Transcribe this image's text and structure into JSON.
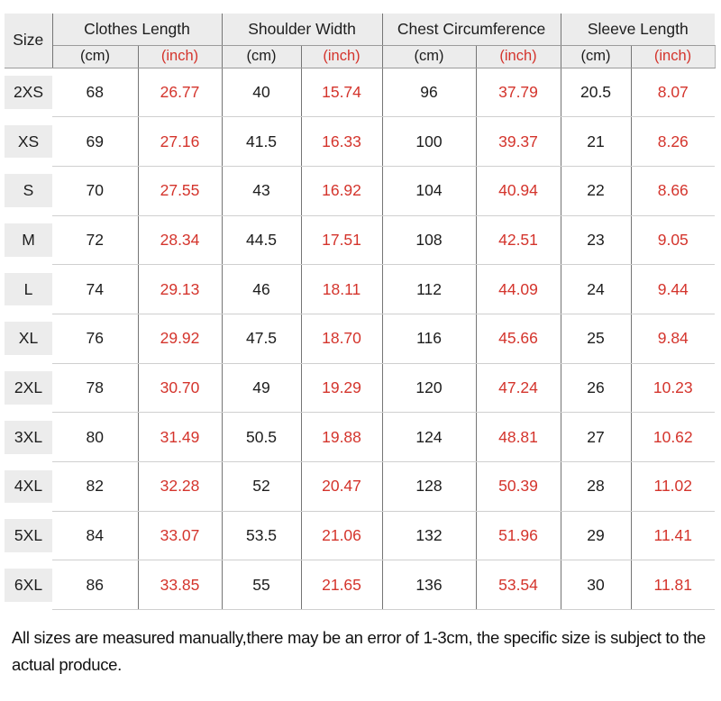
{
  "colors": {
    "red_accent": "#d4342c",
    "header_background": "#ececec",
    "column_line": "#757575",
    "row_line": "#cfcfcf",
    "text": "#1d1d1d"
  },
  "table": {
    "size_header": "Size",
    "unit_cm": "(cm)",
    "unit_inch": "(inch)",
    "groups": [
      {
        "label": "Clothes Length"
      },
      {
        "label": "Shoulder Width"
      },
      {
        "label": "Chest Circumference"
      },
      {
        "label": "Sleeve Length"
      }
    ],
    "rows": [
      {
        "size": "2XS",
        "values": [
          "68",
          "26.77",
          "40",
          "15.74",
          "96",
          "37.79",
          "20.5",
          "8.07"
        ]
      },
      {
        "size": "XS",
        "values": [
          "69",
          "27.16",
          "41.5",
          "16.33",
          "100",
          "39.37",
          "21",
          "8.26"
        ]
      },
      {
        "size": "S",
        "values": [
          "70",
          "27.55",
          "43",
          "16.92",
          "104",
          "40.94",
          "22",
          "8.66"
        ]
      },
      {
        "size": "M",
        "values": [
          "72",
          "28.34",
          "44.5",
          "17.51",
          "108",
          "42.51",
          "23",
          "9.05"
        ]
      },
      {
        "size": "L",
        "values": [
          "74",
          "29.13",
          "46",
          "18.11",
          "112",
          "44.09",
          "24",
          "9.44"
        ]
      },
      {
        "size": "XL",
        "values": [
          "76",
          "29.92",
          "47.5",
          "18.70",
          "116",
          "45.66",
          "25",
          "9.84"
        ]
      },
      {
        "size": "2XL",
        "values": [
          "78",
          "30.70",
          "49",
          "19.29",
          "120",
          "47.24",
          "26",
          "10.23"
        ]
      },
      {
        "size": "3XL",
        "values": [
          "80",
          "31.49",
          "50.5",
          "19.88",
          "124",
          "48.81",
          "27",
          "10.62"
        ]
      },
      {
        "size": "4XL",
        "values": [
          "82",
          "32.28",
          "52",
          "20.47",
          "128",
          "50.39",
          "28",
          "11.02"
        ]
      },
      {
        "size": "5XL",
        "values": [
          "84",
          "33.07",
          "53.5",
          "21.06",
          "132",
          "51.96",
          "29",
          "11.41"
        ]
      },
      {
        "size": "6XL",
        "values": [
          "86",
          "33.85",
          "55",
          "21.65",
          "136",
          "53.54",
          "30",
          "11.81"
        ]
      }
    ]
  },
  "footer": {
    "note": "All sizes are measured manually,there may be an error of 1-3cm, the specific size is subject to the actual produce."
  }
}
